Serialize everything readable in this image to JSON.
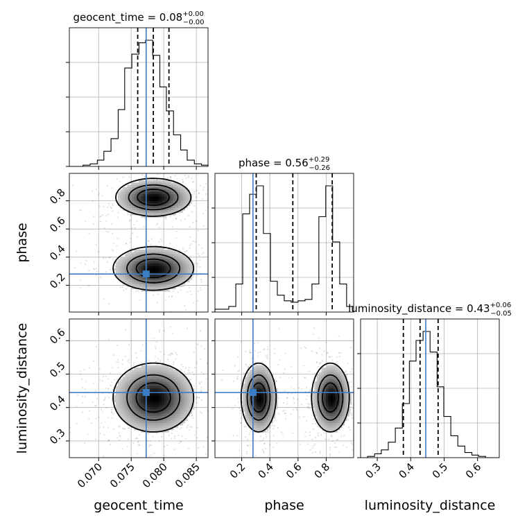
{
  "chart_data": {
    "type": "corner",
    "parameters": [
      "geocent_time",
      "phase",
      "luminosity_distance"
    ],
    "truths": {
      "geocent_time": 0.0773,
      "phase": 0.28,
      "luminosity_distance": 0.445
    },
    "truth_color": "#3b7dc4",
    "ranges": {
      "geocent_time": [
        0.0655,
        0.0868
      ],
      "phase": [
        0.01,
        0.995
      ],
      "luminosity_distance": [
        0.25,
        0.665
      ]
    },
    "ticks": {
      "geocent_time": [
        {
          "v": 0.07,
          "label": "0.070"
        },
        {
          "v": 0.075,
          "label": "0.075"
        },
        {
          "v": 0.08,
          "label": "0.080"
        },
        {
          "v": 0.085,
          "label": "0.085"
        }
      ],
      "phase": [
        {
          "v": 0.2,
          "label": "0.2"
        },
        {
          "v": 0.4,
          "label": "0.4"
        },
        {
          "v": 0.6,
          "label": "0.6"
        },
        {
          "v": 0.8,
          "label": "0.8"
        }
      ],
      "luminosity_distance": [
        {
          "v": 0.3,
          "label": "0.3"
        },
        {
          "v": 0.4,
          "label": "0.4"
        },
        {
          "v": 0.5,
          "label": "0.5"
        },
        {
          "v": 0.6,
          "label": "0.6"
        }
      ]
    },
    "marginals": [
      {
        "param": "geocent_time",
        "title": {
          "name": "geocent_time",
          "value": "0.08",
          "plus": "+0.00",
          "minus": "−0.00"
        },
        "quantiles": [
          0.076,
          0.0784,
          0.0808
        ],
        "edges": [
          0.0655,
          0.0666,
          0.0676,
          0.0687,
          0.0698,
          0.0708,
          0.0719,
          0.073,
          0.074,
          0.0751,
          0.0762,
          0.0772,
          0.0783,
          0.0794,
          0.0804,
          0.0815,
          0.0826,
          0.0836,
          0.0847,
          0.0858,
          0.0868
        ],
        "counts": [
          0,
          0,
          1,
          2,
          5,
          12,
          22,
          45,
          78,
          89,
          98,
          100,
          88,
          63,
          44,
          25,
          13,
          5,
          2,
          1
        ]
      },
      {
        "param": "phase",
        "title": {
          "name": "phase",
          "value": "0.56",
          "plus": "+0.29",
          "minus": "−0.26"
        },
        "quantiles": [
          0.303,
          0.563,
          0.843
        ],
        "edges": [
          0.01,
          0.059,
          0.108,
          0.158,
          0.207,
          0.256,
          0.305,
          0.354,
          0.404,
          0.453,
          0.502,
          0.551,
          0.6,
          0.65,
          0.699,
          0.748,
          0.797,
          0.846,
          0.896,
          0.945,
          0.995
        ],
        "counts": [
          2,
          2,
          4,
          20,
          70,
          84,
          90,
          56,
          22,
          12,
          8,
          7,
          8,
          9,
          20,
          68,
          90,
          50,
          20,
          4
        ]
      },
      {
        "param": "luminosity_distance",
        "title": {
          "name": "luminosity_distance",
          "value": "0.43",
          "plus": "+0.06",
          "minus": "−0.05"
        },
        "quantiles": [
          0.378,
          0.428,
          0.482
        ],
        "edges": [
          0.25,
          0.271,
          0.292,
          0.312,
          0.333,
          0.354,
          0.375,
          0.396,
          0.416,
          0.437,
          0.458,
          0.479,
          0.499,
          0.52,
          0.541,
          0.562,
          0.583,
          0.603,
          0.624,
          0.645,
          0.665
        ],
        "counts": [
          0,
          1,
          3,
          6,
          12,
          23,
          42,
          75,
          91,
          98,
          82,
          55,
          32,
          17,
          9,
          4,
          2,
          1,
          0,
          0
        ]
      }
    ],
    "joint_panels": [
      {
        "x": "geocent_time",
        "y": "phase",
        "modes": [
          {
            "cx": 0.0784,
            "cy": 0.825,
            "sx": 0.0028,
            "sy": 0.065,
            "w": 1.0
          },
          {
            "cx": 0.0784,
            "cy": 0.32,
            "sx": 0.003,
            "sy": 0.075,
            "w": 1.0
          }
        ]
      },
      {
        "x": "geocent_time",
        "y": "luminosity_distance",
        "modes": [
          {
            "cx": 0.0784,
            "cy": 0.43,
            "sx": 0.003,
            "sy": 0.05,
            "w": 1.0
          }
        ]
      },
      {
        "x": "phase",
        "y": "luminosity_distance",
        "modes": [
          {
            "cx": 0.32,
            "cy": 0.43,
            "sx": 0.06,
            "sy": 0.05,
            "w": 1.0
          },
          {
            "cx": 0.83,
            "cy": 0.43,
            "sx": 0.065,
            "sy": 0.05,
            "w": 1.0
          }
        ]
      }
    ],
    "contour_levels": [
      0.12,
      0.4,
      0.68
    ],
    "xlabel_rotation_deg": 45,
    "grid": true
  }
}
